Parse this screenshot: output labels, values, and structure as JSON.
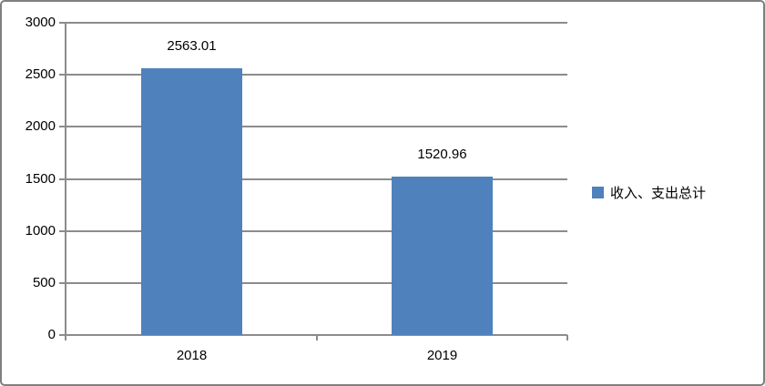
{
  "chart_data": {
    "type": "bar",
    "title": "",
    "categories": [
      "2018",
      "2019"
    ],
    "series": [
      {
        "name": "收入、支出总计",
        "values": [
          2563.01,
          1520.96
        ]
      }
    ],
    "data_labels": [
      "2563.01",
      "1520.96"
    ],
    "ylim": [
      0,
      3000
    ],
    "yticks": [
      0,
      500,
      1000,
      1500,
      2000,
      2500,
      3000
    ],
    "grid": true,
    "legend_position": "right",
    "colors": {
      "bar": "#4F81BD",
      "grid": "#8C8C8C",
      "axis": "#8C8C8C",
      "frame": "#7F7F7F",
      "text": "#000000",
      "background": "#FFFFFF"
    }
  }
}
